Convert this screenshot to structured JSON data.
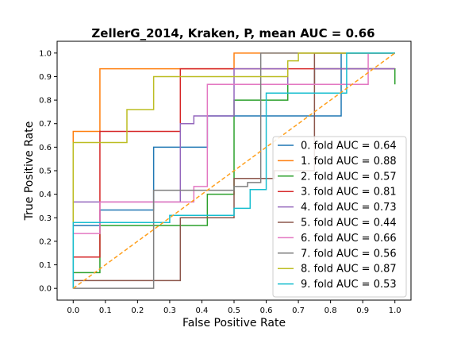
{
  "chart_data": {
    "type": "line",
    "title": "ZellerG_2014, Kraken, P, mean AUC =  0.66",
    "xlabel": "False Positive Rate",
    "ylabel": "True Positive Rate",
    "xlim": [
      -0.05,
      1.05
    ],
    "ylim": [
      -0.05,
      1.05
    ],
    "x_ticks": [
      "0.0",
      "0.1",
      "0.2",
      "0.3",
      "0.4",
      "0.5",
      "0.6",
      "0.7",
      "0.8",
      "0.9",
      "1.0"
    ],
    "y_ticks": [
      "0.0",
      "0.1",
      "0.2",
      "0.3",
      "0.4",
      "0.5",
      "0.6",
      "0.7",
      "0.8",
      "0.9",
      "1.0"
    ],
    "grid": false,
    "legend_position": "lower-right",
    "series": [
      {
        "name": "0. fold AUC = 0.64",
        "color": "#1f77b4",
        "x": [
          0,
          0,
          0.083,
          0.083,
          0.25,
          0.25,
          0.417,
          0.417,
          0.833,
          0.833,
          1.0
        ],
        "y": [
          0,
          0.267,
          0.267,
          0.333,
          0.333,
          0.6,
          0.6,
          0.733,
          0.733,
          1.0,
          1.0
        ]
      },
      {
        "name": "1. fold AUC = 0.88",
        "color": "#ff7f0e",
        "x": [
          0,
          0,
          0.083,
          0.083,
          0.5,
          0.5,
          1.0
        ],
        "y": [
          0,
          0.667,
          0.667,
          0.933,
          0.933,
          1.0,
          1.0
        ]
      },
      {
        "name": "2. fold AUC = 0.57",
        "color": "#2ca02c",
        "x": [
          0,
          0,
          0.083,
          0.083,
          0.417,
          0.417,
          0.5,
          0.5,
          0.667,
          0.667,
          0.75,
          0.75,
          1.0,
          1.0
        ],
        "y": [
          0,
          0.067,
          0.067,
          0.267,
          0.267,
          0.4,
          0.4,
          0.8,
          0.8,
          0.867,
          0.867,
          0.933,
          0.933,
          0.867
        ]
      },
      {
        "name": "3. fold AUC = 0.81",
        "color": "#d62728",
        "x": [
          0,
          0,
          0.083,
          0.083,
          0.333,
          0.333,
          1.0
        ],
        "y": [
          0,
          0.133,
          0.133,
          0.667,
          0.667,
          0.933,
          0.933
        ]
      },
      {
        "name": "4. fold AUC = 0.73",
        "color": "#9467bd",
        "x": [
          0,
          0,
          0.333,
          0.333,
          0.375,
          0.375,
          0.5,
          0.5,
          0.667,
          0.667,
          0.75,
          0.75,
          1.0
        ],
        "y": [
          0,
          0.367,
          0.367,
          0.7,
          0.7,
          0.733,
          0.733,
          0.933,
          0.933,
          0.867,
          0.867,
          0.933,
          0.933
        ]
      },
      {
        "name": "5. fold AUC = 0.44",
        "color": "#8c564b",
        "x": [
          0,
          0,
          0.333,
          0.333,
          0.5,
          0.5,
          0.625,
          0.625,
          0.75,
          0.75,
          1.0
        ],
        "y": [
          0,
          0.033,
          0.033,
          0.3,
          0.3,
          0.467,
          0.467,
          0.5,
          0.5,
          1.0,
          1.0
        ]
      },
      {
        "name": "6. fold AUC = 0.66",
        "color": "#e377c2",
        "x": [
          0,
          0,
          0.083,
          0.083,
          0.375,
          0.375,
          0.417,
          0.417,
          0.917,
          0.917,
          1.0
        ],
        "y": [
          0,
          0.233,
          0.233,
          0.367,
          0.367,
          0.433,
          0.433,
          0.867,
          0.867,
          1.0,
          1.0
        ]
      },
      {
        "name": "7. fold AUC = 0.56",
        "color": "#7f7f7f",
        "x": [
          0,
          0,
          0.25,
          0.25,
          0.5,
          0.5,
          0.542,
          0.542,
          0.583,
          0.583,
          0.583,
          0.583,
          0.75,
          0.75,
          1.0
        ],
        "y": [
          0,
          0,
          0,
          0.417,
          0.417,
          0.433,
          0.433,
          0.45,
          0.45,
          0.833,
          0.833,
          1.0,
          1.0,
          1.0,
          1.0
        ]
      },
      {
        "name": "8. fold AUC = 0.87",
        "color": "#bcbd22",
        "x": [
          0,
          0,
          0.167,
          0.167,
          0.25,
          0.25,
          0.25,
          0.25,
          0.667,
          0.667,
          0.7,
          0.7,
          1.0
        ],
        "y": [
          0,
          0.62,
          0.62,
          0.76,
          0.76,
          0.9,
          0.9,
          0.9,
          0.9,
          0.967,
          0.967,
          1.0,
          1.0
        ]
      },
      {
        "name": "9. fold AUC = 0.53",
        "color": "#17becf",
        "x": [
          0,
          0,
          0.3,
          0.3,
          0.5,
          0.5,
          0.55,
          0.55,
          0.6,
          0.6,
          0.65,
          0.65,
          0.65,
          0.65,
          0.85,
          0.85,
          0.9,
          0.9,
          1.0
        ],
        "y": [
          0,
          0.28,
          0.28,
          0.31,
          0.31,
          0.34,
          0.34,
          0.42,
          0.42,
          0.83,
          0.83,
          0.83,
          0.83,
          0.83,
          0.83,
          1.0,
          1.0,
          1.0,
          1.0
        ]
      }
    ],
    "reference_line": {
      "color": "#ff9f1c",
      "style": "dashed",
      "x": [
        0,
        1
      ],
      "y": [
        0,
        1
      ]
    }
  }
}
